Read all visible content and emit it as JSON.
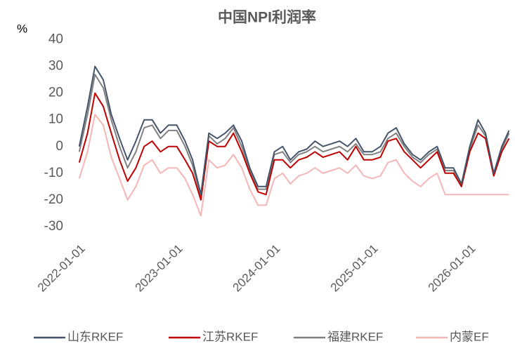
{
  "chart_data": {
    "type": "line",
    "title": "中国NPI利润率",
    "y_label": "%",
    "x": [
      "2022-01-01",
      "2022-02-01",
      "2022-03-01",
      "2022-04-01",
      "2022-05-01",
      "2022-06-01",
      "2022-07-01",
      "2022-08-01",
      "2022-09-01",
      "2022-10-01",
      "2022-11-01",
      "2022-12-01",
      "2023-01-01",
      "2023-02-01",
      "2023-03-01",
      "2023-04-01",
      "2023-05-01",
      "2023-06-01",
      "2023-07-01",
      "2023-08-01",
      "2023-09-01",
      "2023-10-01",
      "2023-11-01",
      "2023-12-01",
      "2024-01-01",
      "2024-02-01",
      "2024-03-01",
      "2024-04-01",
      "2024-05-01",
      "2024-06-01",
      "2024-07-01",
      "2024-08-01",
      "2024-09-01",
      "2024-10-01",
      "2024-11-01",
      "2024-12-01",
      "2025-01-01",
      "2025-02-01",
      "2025-03-01",
      "2025-04-01",
      "2025-05-01",
      "2025-06-01",
      "2025-07-01",
      "2025-08-01",
      "2025-09-01",
      "2025-10-01",
      "2025-11-01",
      "2025-12-01",
      "2026-01-01",
      "2026-02-01",
      "2026-03-01",
      "2026-04-01",
      "2026-05-01",
      "2026-05-28"
    ],
    "series": [
      {
        "name": "山东RKEF",
        "color": "#44546a",
        "values": [
          0,
          15,
          30,
          25,
          12,
          3,
          -5,
          2,
          10,
          10,
          5,
          8,
          8,
          2,
          -5,
          -18,
          5,
          3,
          5,
          8,
          2,
          -8,
          -15,
          -15,
          -2,
          0,
          -5,
          -2,
          -1,
          2,
          0,
          1,
          2,
          0,
          3,
          -2,
          -2,
          0,
          5,
          7,
          1,
          -3,
          -5,
          -2,
          0,
          -8,
          -8,
          -14,
          0,
          10,
          5,
          -10,
          0,
          6
        ]
      },
      {
        "name": "江苏RKEF",
        "color": "#c00000",
        "values": [
          -6,
          5,
          20,
          15,
          5,
          -5,
          -13,
          -8,
          0,
          2,
          -2,
          0,
          0,
          -5,
          -10,
          -20,
          2,
          0,
          0,
          5,
          -2,
          -10,
          -17,
          -18,
          -5,
          -5,
          -8,
          -5,
          -4,
          -2,
          -4,
          -3,
          -2,
          -5,
          0,
          -5,
          -5,
          -4,
          2,
          3,
          -2,
          -5,
          -8,
          -5,
          -2,
          -10,
          -10,
          -15,
          -2,
          5,
          3,
          -11,
          -2,
          3
        ]
      },
      {
        "name": "福建RKEF",
        "color": "#808080",
        "values": [
          -2,
          12,
          27,
          22,
          10,
          0,
          -8,
          -2,
          7,
          8,
          3,
          6,
          6,
          0,
          -7,
          -19,
          4,
          1,
          3,
          7,
          0,
          -9,
          -16,
          -16,
          -3,
          -2,
          -6,
          -3,
          -2,
          0,
          -2,
          -1,
          0,
          -2,
          1,
          -3,
          -3,
          -2,
          3,
          5,
          0,
          -4,
          -6,
          -3,
          -1,
          -9,
          -9,
          -14,
          -1,
          8,
          4,
          -11,
          -1,
          5
        ]
      },
      {
        "name": "内蒙EF",
        "color": "#f4b6b6",
        "values": [
          -12,
          -2,
          12,
          8,
          -4,
          -12,
          -20,
          -15,
          -7,
          -5,
          -10,
          -8,
          -8,
          -12,
          -18,
          -26,
          -5,
          -8,
          -7,
          -3,
          -8,
          -16,
          -22,
          -22,
          -12,
          -10,
          -14,
          -11,
          -10,
          -8,
          -10,
          -9,
          -8,
          -10,
          -7,
          -11,
          -12,
          -11,
          -6,
          -5,
          -10,
          -13,
          -15,
          -12,
          -10,
          -18,
          -18,
          -18,
          -18,
          -18,
          -18,
          -18,
          -18,
          -18
        ]
      }
    ],
    "xlim": [
      "2021-12-01",
      "2026-06-01"
    ],
    "xticks": [
      "2022-01-01",
      "2023-01-01",
      "2024-01-01",
      "2025-01-01",
      "2026-01-01"
    ],
    "ylim": [
      -35,
      42
    ],
    "yticks": [
      -30,
      -20,
      -10,
      0,
      10,
      20,
      30,
      40
    ],
    "grid": false,
    "legend": "bottom"
  }
}
